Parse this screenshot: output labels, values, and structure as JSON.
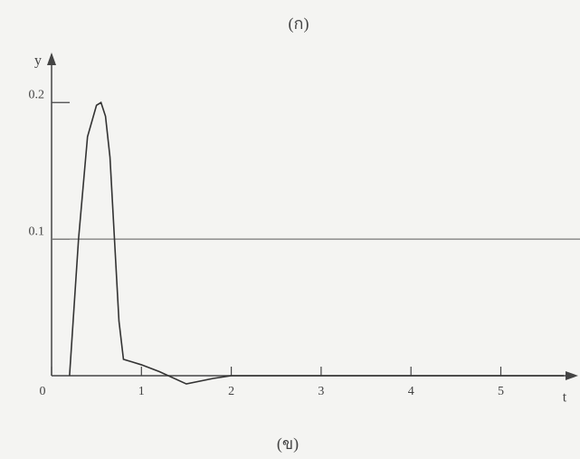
{
  "chart_data": {
    "type": "line",
    "title": "(ก)",
    "caption": "(ข)",
    "x_label": "t",
    "y_label": "y",
    "x": [
      0.2,
      0.3,
      0.4,
      0.5,
      0.55,
      0.6,
      0.65,
      0.7,
      0.75,
      0.8,
      0.9,
      1.0,
      1.2,
      1.5,
      1.8,
      2.0,
      3.0,
      4.0,
      5.0,
      5.7
    ],
    "series": [
      {
        "name": "y",
        "color": "#333333",
        "values": [
          0,
          0.1,
          0.175,
          0.198,
          0.2,
          0.19,
          0.16,
          0.1,
          0.04,
          0.012,
          0.01,
          0.008,
          0.003,
          -0.006,
          -0.002,
          0,
          0,
          0,
          0,
          0
        ]
      }
    ],
    "reference_line": 0.1,
    "xlim": [
      0,
      5.7
    ],
    "ylim": [
      0,
      0.23
    ],
    "xticks": [
      0,
      1,
      2,
      3,
      4,
      5
    ],
    "yticks": [
      0.1,
      0.2
    ]
  }
}
